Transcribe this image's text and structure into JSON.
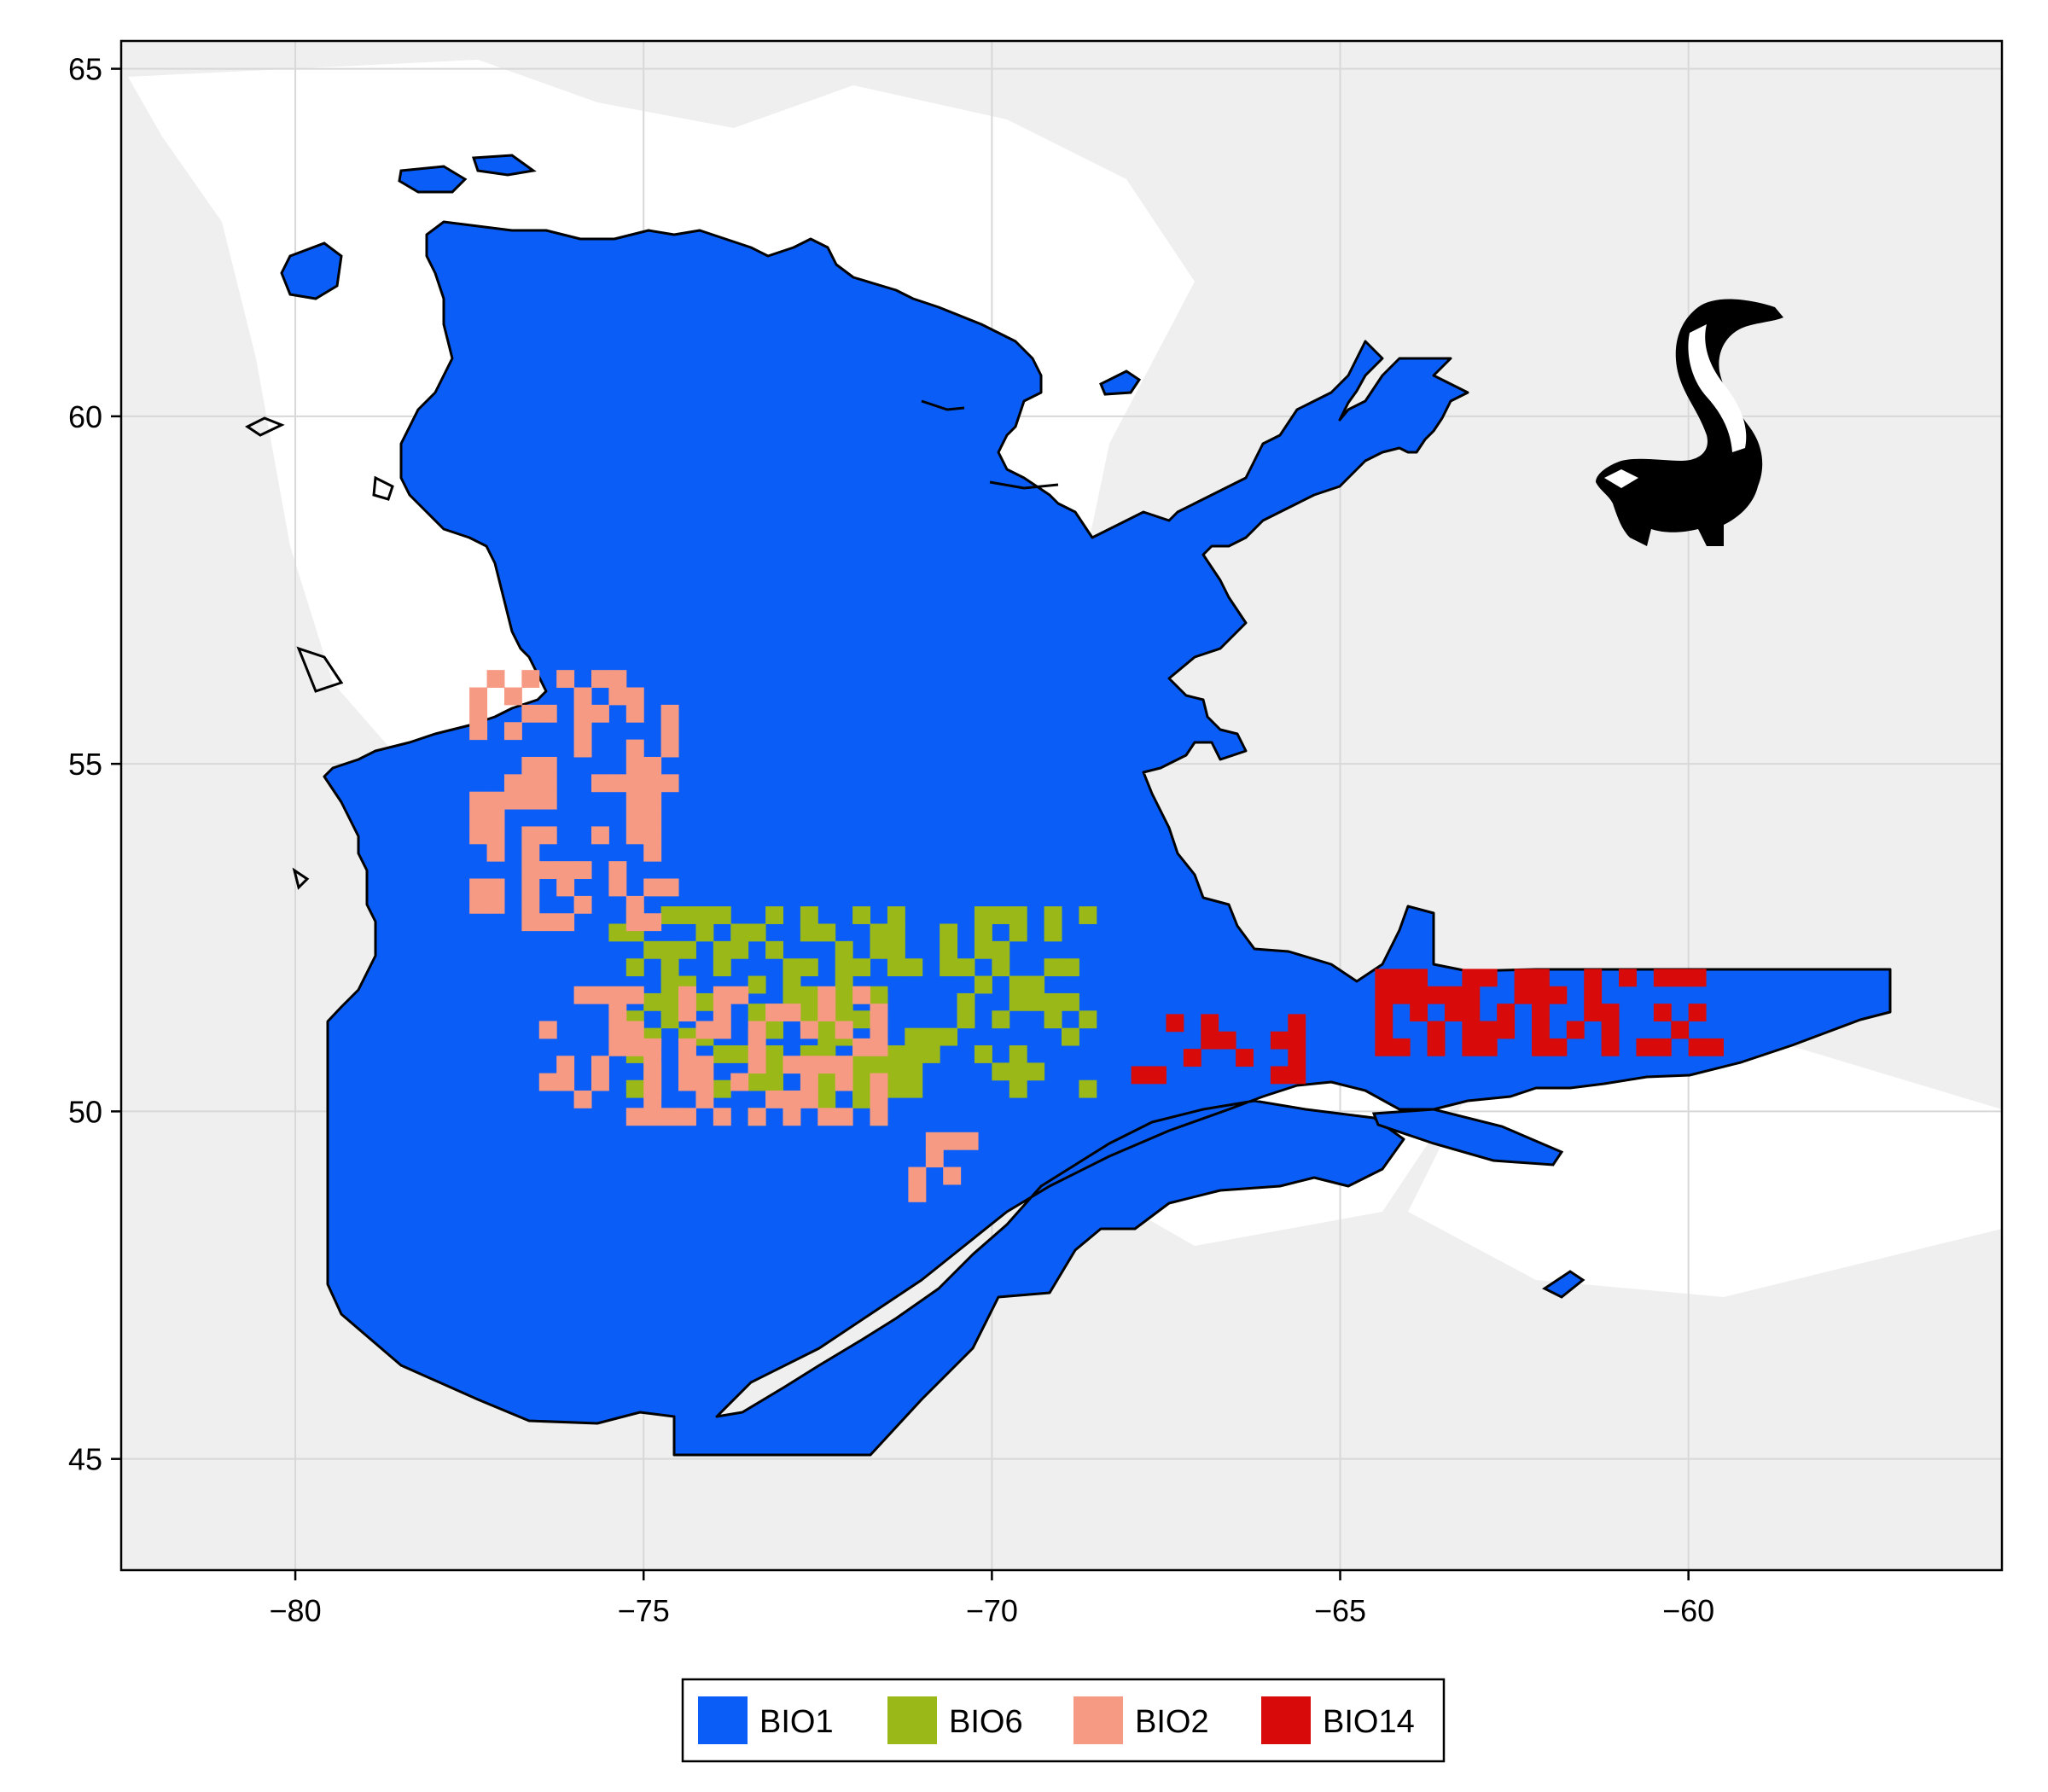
{
  "chart_data": {
    "type": "map",
    "title": "",
    "xlabel": "",
    "ylabel": "",
    "xlim": [
      -82.5,
      -55.5
    ],
    "ylim": [
      43.4,
      65.4
    ],
    "grid": true,
    "x_ticks": [
      {
        "value": -80,
        "label": "−80"
      },
      {
        "value": -75,
        "label": "−75"
      },
      {
        "value": -70,
        "label": "−70"
      },
      {
        "value": -65,
        "label": "−65"
      },
      {
        "value": -60,
        "label": "−60"
      }
    ],
    "y_ticks": [
      {
        "value": 45,
        "label": "45"
      },
      {
        "value": 50,
        "label": "50"
      },
      {
        "value": 55,
        "label": "55"
      },
      {
        "value": 60,
        "label": "60"
      },
      {
        "value": 65,
        "label": "65"
      }
    ],
    "legend_placement": "bottom-center",
    "legend": [
      {
        "label": "BIO1",
        "color": "#0a5ef7"
      },
      {
        "label": "BIO6",
        "color": "#9ab817"
      },
      {
        "label": "BIO2",
        "color": "#f79a84"
      },
      {
        "label": "BIO14",
        "color": "#d90a0a"
      }
    ],
    "background_color": "#efefef",
    "region_fill_variable": "BIO1",
    "regions": [
      {
        "variable": "BIO6",
        "lon": [
          -73.5,
          -71.5
        ],
        "lat": [
          49.8,
          51.8
        ]
      },
      {
        "variable": "BIO6",
        "lon": [
          -75.5,
          -68.5
        ],
        "lat": [
          50.2,
          52.8
        ]
      },
      {
        "variable": "BIO2",
        "lon": [
          -77.5,
          -74.5
        ],
        "lat": [
          52.6,
          56.2
        ]
      },
      {
        "variable": "BIO2",
        "lon": [
          -76.5,
          -71.5
        ],
        "lat": [
          49.8,
          51.6
        ]
      },
      {
        "variable": "BIO2",
        "lon": [
          -71.2,
          -70.3
        ],
        "lat": [
          48.7,
          49.6
        ]
      },
      {
        "variable": "BIO14",
        "lon": [
          -68,
          -65.7
        ],
        "lat": [
          50.4,
          51.3
        ]
      },
      {
        "variable": "BIO14",
        "lon": [
          -64.5,
          -59.5
        ],
        "lat": [
          50.8,
          52
        ]
      }
    ],
    "silhouette_icon": "skunk-icon"
  }
}
